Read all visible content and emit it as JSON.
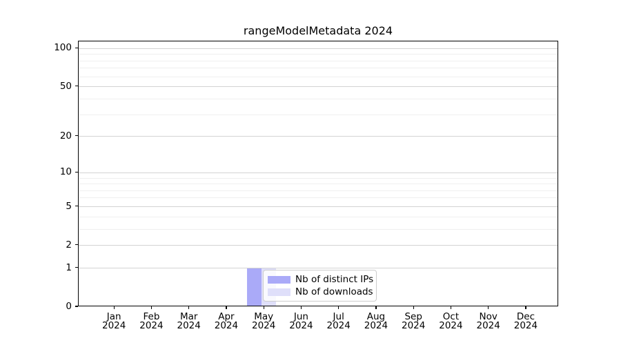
{
  "chart_data": {
    "type": "bar",
    "title": "rangeModelMetadata 2024",
    "categories": [
      "Jan",
      "Feb",
      "Mar",
      "Apr",
      "May",
      "Jun",
      "Jul",
      "Aug",
      "Sep",
      "Oct",
      "Nov",
      "Dec"
    ],
    "x_year_label": "2024",
    "series": [
      {
        "name": "Nb of distinct IPs",
        "color": "#aaaaf8",
        "values": [
          0,
          0,
          0,
          0,
          1,
          0,
          0,
          0,
          0,
          0,
          0,
          0
        ]
      },
      {
        "name": "Nb of downloads",
        "color": "#dfdffa",
        "values": [
          0,
          0,
          0,
          0,
          1,
          0,
          0,
          0,
          0,
          0,
          0,
          0
        ]
      }
    ],
    "xlabel": "",
    "ylabel": "",
    "yscale": "log1p",
    "ylim": [
      0,
      113.6
    ],
    "yticks": [
      0,
      1,
      2,
      5,
      10,
      20,
      50,
      100
    ],
    "y_minor_ticks": [
      3,
      4,
      6,
      7,
      8,
      9,
      30,
      40,
      60,
      70,
      80,
      90
    ],
    "grid": "horizontal",
    "legend_position": "inside-lower-center",
    "colors": {
      "axis": "#000000",
      "text": "#000000",
      "major_grid": "#d3d3d3",
      "minor_grid": "#efefef",
      "legend_border": "#cccccc",
      "plot_background": "#ffffff"
    }
  }
}
